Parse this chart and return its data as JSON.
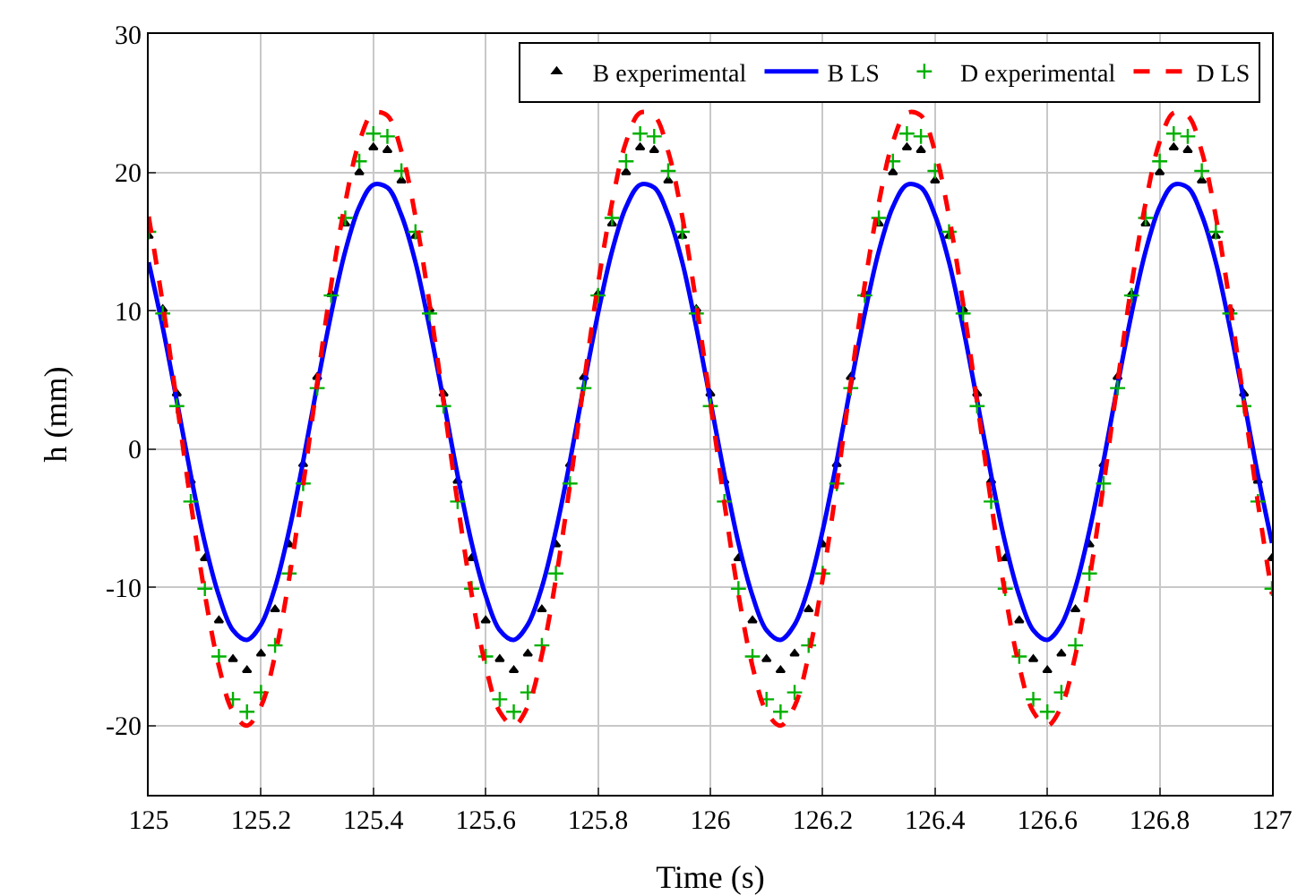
{
  "chart_data": {
    "type": "scatter",
    "xlabel": "Time (s)",
    "ylabel": "h (mm)",
    "x": [
      125,
      125.025,
      125.05,
      125.075,
      125.1,
      125.125,
      125.15,
      125.175,
      125.2,
      125.225,
      125.25,
      125.275,
      125.3,
      125.325,
      125.35,
      125.375,
      125.4,
      125.425,
      125.45,
      125.475,
      125.5,
      125.525,
      125.55,
      125.575,
      125.6,
      125.625,
      125.65,
      125.675,
      125.7,
      125.725,
      125.75,
      125.775,
      125.8,
      125.825,
      125.85,
      125.875,
      125.9,
      125.925,
      125.95,
      125.975,
      126,
      126.025,
      126.05,
      126.075,
      126.1,
      126.125,
      126.15,
      126.175,
      126.2,
      126.225,
      126.25,
      126.275,
      126.3,
      126.325,
      126.35,
      126.375,
      126.4,
      126.425,
      126.45,
      126.475,
      126.5,
      126.525,
      126.55,
      126.575,
      126.6,
      126.625,
      126.65,
      126.675,
      126.7,
      126.725,
      126.75,
      126.775,
      126.8,
      126.825,
      126.85,
      126.875,
      126.9,
      126.925,
      126.95,
      126.975,
      127
    ],
    "series": [
      {
        "name": "B experimental",
        "marker": "triangle",
        "color": "#000000",
        "values": [
          15.4,
          10.1,
          4.0,
          -2.3,
          -7.9,
          -12.4,
          -15.2,
          -16.0,
          -14.8,
          -11.6,
          -6.9,
          -1.1,
          5.2,
          11.2,
          16.3,
          20.0,
          21.8,
          21.6,
          19.4,
          15.4,
          10.1,
          4.0,
          -2.3,
          -7.9,
          -12.4,
          -15.2,
          -16.0,
          -14.8,
          -11.6,
          -6.9,
          -1.1,
          5.2,
          11.2,
          16.3,
          20.0,
          21.8,
          21.6,
          19.4,
          15.4,
          10.1,
          4.0,
          -2.3,
          -7.9,
          -12.4,
          -15.2,
          -16.0,
          -14.8,
          -11.6,
          -6.9,
          -1.1,
          5.2,
          11.2,
          16.3,
          20.0,
          21.8,
          21.6,
          19.4,
          15.4,
          10.1,
          4.0,
          -2.3,
          -7.9,
          -12.4,
          -15.2,
          -16.0,
          -14.8,
          -11.6,
          -6.9,
          -1.1,
          5.2,
          11.2,
          16.3,
          20.0,
          21.8,
          21.6,
          19.4,
          15.4,
          10.1,
          4.0,
          -2.3,
          -7.9
        ]
      },
      {
        "name": "B LS",
        "type": "line",
        "line_style": "solid",
        "color": "#0000ff",
        "values": [
          13.5,
          8.8,
          3.5,
          -1.9,
          -6.8,
          -10.6,
          -13.1,
          -13.8,
          -12.7,
          -10.0,
          -5.9,
          -0.9,
          4.6,
          9.8,
          14.3,
          17.5,
          19.1,
          18.9,
          16.9,
          13.5,
          8.8,
          3.5,
          -1.9,
          -6.8,
          -10.6,
          -13.1,
          -13.8,
          -12.7,
          -10.0,
          -5.9,
          -0.9,
          4.6,
          9.8,
          14.3,
          17.5,
          19.1,
          18.9,
          16.9,
          13.5,
          8.8,
          3.5,
          -1.9,
          -6.8,
          -10.6,
          -13.1,
          -13.8,
          -12.7,
          -10.0,
          -5.9,
          -0.9,
          4.6,
          9.8,
          14.3,
          17.5,
          19.1,
          18.9,
          16.9,
          13.5,
          8.8,
          3.5,
          -1.9,
          -6.8,
          -10.6,
          -13.1,
          -13.8,
          -12.7,
          -10.0,
          -5.9,
          -0.9,
          4.6,
          9.8,
          14.3,
          17.5,
          19.1,
          18.9,
          16.9,
          13.5,
          8.8,
          3.5,
          -1.9,
          -6.8
        ]
      },
      {
        "name": "D experimental",
        "marker": "cross",
        "color": "#00b000",
        "values": [
          15.7,
          9.8,
          3.1,
          -3.8,
          -10.1,
          -15.0,
          -18.1,
          -19.0,
          -17.6,
          -14.2,
          -9.0,
          -2.5,
          4.4,
          11.1,
          16.7,
          20.8,
          22.8,
          22.6,
          20.1,
          15.7,
          9.8,
          3.1,
          -3.8,
          -10.1,
          -15.0,
          -18.1,
          -19.0,
          -17.6,
          -14.2,
          -9.0,
          -2.5,
          4.4,
          11.1,
          16.7,
          20.8,
          22.8,
          22.6,
          20.1,
          15.7,
          9.8,
          3.1,
          -3.8,
          -10.1,
          -15.0,
          -18.1,
          -19.0,
          -17.6,
          -14.2,
          -9.0,
          -2.5,
          4.4,
          11.1,
          16.7,
          20.8,
          22.8,
          22.6,
          20.1,
          15.7,
          9.8,
          3.1,
          -3.8,
          -10.1,
          -15.0,
          -18.1,
          -19.0,
          -17.6,
          -14.2,
          -9.0,
          -2.5,
          4.4,
          11.1,
          16.7,
          20.8,
          22.8,
          22.6,
          20.1,
          15.7,
          9.8,
          3.1,
          -3.8,
          -10.1
        ]
      },
      {
        "name": "D LS",
        "type": "line",
        "line_style": "dashed",
        "color": "#ff0000",
        "values": [
          16.8,
          10.5,
          3.4,
          -3.9,
          -10.5,
          -15.7,
          -19.0,
          -20.0,
          -18.6,
          -14.9,
          -9.4,
          -2.6,
          4.8,
          11.9,
          17.8,
          22.2,
          24.3,
          24.1,
          21.5,
          16.8,
          10.5,
          3.4,
          -3.9,
          -10.5,
          -15.7,
          -19.0,
          -20.0,
          -18.6,
          -14.9,
          -9.4,
          -2.6,
          4.8,
          11.9,
          17.8,
          22.2,
          24.3,
          24.1,
          21.5,
          16.8,
          10.5,
          3.4,
          -3.9,
          -10.5,
          -15.7,
          -19.0,
          -20.0,
          -18.6,
          -14.9,
          -9.4,
          -2.6,
          4.8,
          11.9,
          17.8,
          22.2,
          24.3,
          24.1,
          21.5,
          16.8,
          10.5,
          3.4,
          -3.9,
          -10.5,
          -15.7,
          -19.0,
          -20.0,
          -18.6,
          -14.9,
          -9.4,
          -2.6,
          4.8,
          11.9,
          17.8,
          22.2,
          24.3,
          24.1,
          21.5,
          16.8,
          10.5,
          3.4,
          -3.9,
          -10.5
        ]
      }
    ],
    "xlim": [
      125,
      127
    ],
    "xticks": [
      125,
      125.2,
      125.4,
      125.6,
      125.8,
      126,
      126.2,
      126.4,
      126.6,
      126.8,
      127
    ],
    "ylim": [
      -25,
      30
    ],
    "yticks": [
      -20,
      -10,
      0,
      10,
      20,
      30
    ],
    "grid": true,
    "legend": "top right"
  }
}
